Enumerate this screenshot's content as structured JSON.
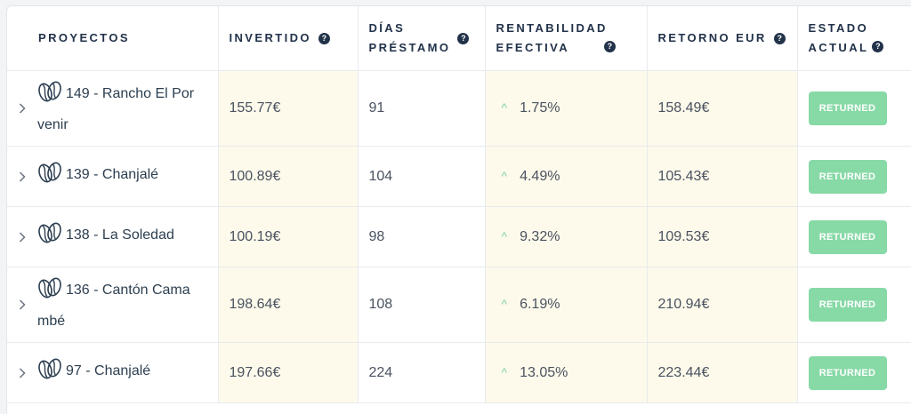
{
  "columns": {
    "proyectos": "PROYECTOS",
    "invertido": "INVERTIDO",
    "dias_prestamo_1": "DÍAS",
    "dias_prestamo_2": "PRÉSTAMO",
    "rentabilidad_1": "RENTABILIDAD",
    "rentabilidad_2": "EFECTIVA",
    "retorno": "RETORNO EUR",
    "estado_1": "ESTADO",
    "estado_2": "ACTUAL"
  },
  "help_glyph": "?",
  "trend_glyph": "^",
  "accent_colors": {
    "status_bg": "#87d9a6",
    "highlight_bg": "#fdfaeb",
    "trend": "#7fd6a0"
  },
  "rows": [
    {
      "proyecto_1": "149 - Rancho El Por",
      "proyecto_2": "venir",
      "invertido": "155.77€",
      "dias": "91",
      "rentabilidad": "1.75%",
      "retorno": "158.49€",
      "estado": "RETURNED"
    },
    {
      "proyecto_1": "139 - Chanjalé",
      "proyecto_2": "",
      "invertido": "100.89€",
      "dias": "104",
      "rentabilidad": "4.49%",
      "retorno": "105.43€",
      "estado": "RETURNED"
    },
    {
      "proyecto_1": "138 - La Soledad",
      "proyecto_2": "",
      "invertido": "100.19€",
      "dias": "98",
      "rentabilidad": "9.32%",
      "retorno": "109.53€",
      "estado": "RETURNED"
    },
    {
      "proyecto_1": "136 - Cantón Cama",
      "proyecto_2": "mbé",
      "invertido": "198.64€",
      "dias": "108",
      "rentabilidad": "6.19%",
      "retorno": "210.94€",
      "estado": "RETURNED"
    },
    {
      "proyecto_1": "97 - Chanjalé",
      "proyecto_2": "",
      "invertido": "197.66€",
      "dias": "224",
      "rentabilidad": "13.05%",
      "retorno": "223.44€",
      "estado": "RETURNED"
    }
  ]
}
